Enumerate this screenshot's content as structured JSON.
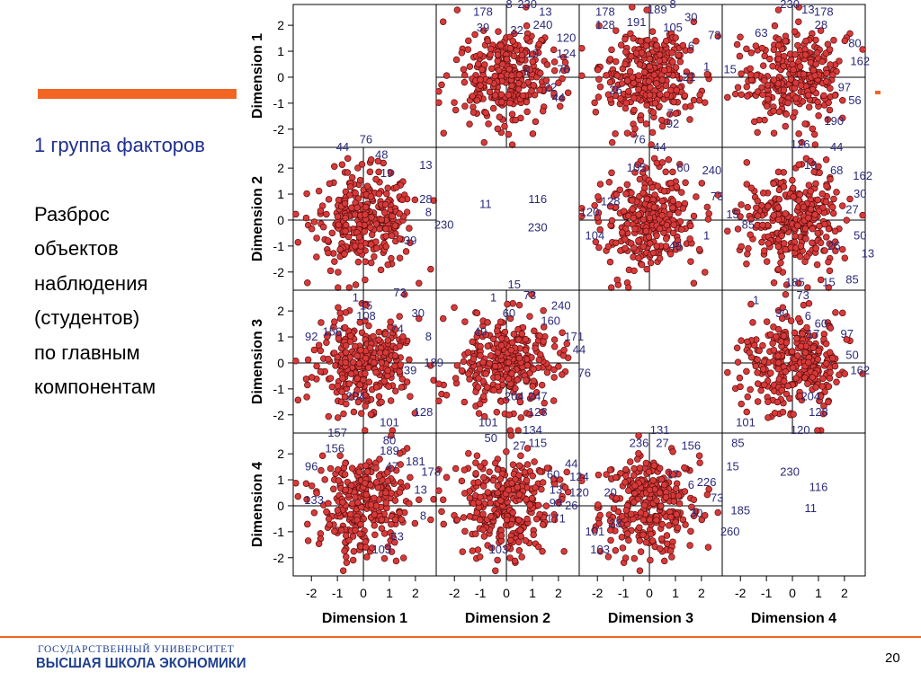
{
  "slide": {
    "group_title": "1 группа факторов",
    "description_lines": [
      "Разброс",
      "объектов",
      "наблюдения",
      "(студентов)",
      "по главным",
      "компонентам"
    ],
    "university_top": "ГОСУДАРСТВЕННЫЙ УНИВЕРСИТЕТ",
    "university_main": "ВЫСШАЯ ШКОЛА ЭКОНОМИКИ",
    "page_number": "20"
  },
  "colors": {
    "accent_orange": "#f26522",
    "brand_blue": "#1f3f8f",
    "point_fill": "#d83a3a",
    "point_stroke": "#5a0e0e",
    "label_color": "#2a2a7a"
  },
  "chart_data": {
    "type": "scatter",
    "subtype": "scatterplot-matrix",
    "variables": [
      "Dimension 1",
      "Dimension 2",
      "Dimension 3",
      "Dimension 4"
    ],
    "axis_range": [
      -2.7,
      2.8
    ],
    "ticks": [
      -2,
      -1,
      0,
      1,
      2
    ],
    "tick_labels": [
      "-2",
      "-1",
      "0",
      "1",
      "2"
    ],
    "grid": true,
    "points_per_panel": 300,
    "outlier_labels": [
      {
        "row": 0,
        "col": 1,
        "labels": [
          {
            "id": "178",
            "x": -0.9,
            "y": 2.5
          },
          {
            "id": "8",
            "x": 0.1,
            "y": 2.8
          },
          {
            "id": "230",
            "x": 0.8,
            "y": 2.8
          },
          {
            "id": "13",
            "x": 1.5,
            "y": 2.5
          },
          {
            "id": "240",
            "x": 1.4,
            "y": 2.0
          },
          {
            "id": "39",
            "x": -0.9,
            "y": 1.9
          },
          {
            "id": "32",
            "x": 0.4,
            "y": 1.8
          },
          {
            "id": "120",
            "x": 2.3,
            "y": 1.5
          },
          {
            "id": "124",
            "x": 2.3,
            "y": 0.9
          },
          {
            "id": "76",
            "x": 2.2,
            "y": 0.3
          },
          {
            "id": "22",
            "x": 1.7,
            "y": -0.4
          },
          {
            "id": "44",
            "x": 2.0,
            "y": -0.8
          },
          {
            "id": "19",
            "x": 1.0,
            "y": 0.9
          },
          {
            "id": "8",
            "x": 0.8,
            "y": 0.2
          }
        ]
      },
      {
        "row": 0,
        "col": 2,
        "labels": [
          {
            "id": "178",
            "x": -1.7,
            "y": 2.5
          },
          {
            "id": "128",
            "x": -1.7,
            "y": 2.0
          },
          {
            "id": "189",
            "x": 0.3,
            "y": 2.6
          },
          {
            "id": "8",
            "x": 0.9,
            "y": 2.8
          },
          {
            "id": "30",
            "x": 1.6,
            "y": 2.3
          },
          {
            "id": "191",
            "x": -0.5,
            "y": 2.1
          },
          {
            "id": "105",
            "x": 0.9,
            "y": 1.9
          },
          {
            "id": "73",
            "x": 2.5,
            "y": 1.6
          },
          {
            "id": "6",
            "x": 1.6,
            "y": 1.2
          },
          {
            "id": "121",
            "x": 1.4,
            "y": 0.0
          },
          {
            "id": "1",
            "x": 2.2,
            "y": 0.4
          },
          {
            "id": "15",
            "x": 3.1,
            "y": 0.3
          },
          {
            "id": "26",
            "x": -1.3,
            "y": -0.5
          },
          {
            "id": "92",
            "x": 0.9,
            "y": -1.8
          },
          {
            "id": "7",
            "x": 0.8,
            "y": -1.4
          }
        ]
      },
      {
        "row": 0,
        "col": 3,
        "labels": [
          {
            "id": "230",
            "x": -0.1,
            "y": 2.8
          },
          {
            "id": "13",
            "x": 0.6,
            "y": 2.6
          },
          {
            "id": "178",
            "x": 1.2,
            "y": 2.5
          },
          {
            "id": "28",
            "x": 1.1,
            "y": 2.0
          },
          {
            "id": "63",
            "x": -1.2,
            "y": 1.7
          },
          {
            "id": "80",
            "x": 2.4,
            "y": 1.3
          },
          {
            "id": "162",
            "x": 2.6,
            "y": 0.6
          },
          {
            "id": "97",
            "x": 2.0,
            "y": -0.4
          },
          {
            "id": "56",
            "x": 2.4,
            "y": -0.9
          },
          {
            "id": "190",
            "x": 1.6,
            "y": -1.7
          }
        ]
      },
      {
        "row": 1,
        "col": 0,
        "labels": [
          {
            "id": "76",
            "x": 0.1,
            "y": 3.1
          },
          {
            "id": "44",
            "x": -0.8,
            "y": 2.8
          },
          {
            "id": "48",
            "x": 0.7,
            "y": 2.5
          },
          {
            "id": "13",
            "x": 2.4,
            "y": 2.1
          },
          {
            "id": "19",
            "x": 0.9,
            "y": 1.8
          },
          {
            "id": "28",
            "x": 2.4,
            "y": 0.8
          },
          {
            "id": "8",
            "x": 2.5,
            "y": 0.3
          },
          {
            "id": "230",
            "x": 3.1,
            "y": -0.2
          },
          {
            "id": "39",
            "x": 1.8,
            "y": -0.8
          }
        ]
      },
      {
        "row": 1,
        "col": 1,
        "labels": [
          {
            "id": "11",
            "x": -0.8,
            "y": 0.6
          },
          {
            "id": "116",
            "x": 1.2,
            "y": 0.8
          },
          {
            "id": "230",
            "x": 1.2,
            "y": -0.3
          }
        ]
      },
      {
        "row": 1,
        "col": 2,
        "labels": [
          {
            "id": "76",
            "x": -0.4,
            "y": 3.1
          },
          {
            "id": "44",
            "x": 0.4,
            "y": 2.8
          },
          {
            "id": "60",
            "x": 1.3,
            "y": 2.0
          },
          {
            "id": "240",
            "x": 2.4,
            "y": 1.9
          },
          {
            "id": "105",
            "x": -0.5,
            "y": 2.0
          },
          {
            "id": "128",
            "x": -1.5,
            "y": 0.7
          },
          {
            "id": "120",
            "x": -2.3,
            "y": 0.3
          },
          {
            "id": "73",
            "x": 2.6,
            "y": 0.9
          },
          {
            "id": "15",
            "x": 3.2,
            "y": 0.2
          },
          {
            "id": "85",
            "x": 3.8,
            "y": -0.2
          },
          {
            "id": "104",
            "x": -2.1,
            "y": -0.6
          },
          {
            "id": "1",
            "x": 2.2,
            "y": -0.6
          },
          {
            "id": "49",
            "x": 1.0,
            "y": -1.0
          }
        ]
      },
      {
        "row": 1,
        "col": 3,
        "labels": [
          {
            "id": "126",
            "x": 0.3,
            "y": 2.9
          },
          {
            "id": "44",
            "x": 1.7,
            "y": 2.8
          },
          {
            "id": "13",
            "x": 0.7,
            "y": 2.1
          },
          {
            "id": "68",
            "x": 1.7,
            "y": 1.9
          },
          {
            "id": "162",
            "x": 2.7,
            "y": 1.7
          },
          {
            "id": "30",
            "x": 2.6,
            "y": 1.0
          },
          {
            "id": "27",
            "x": 2.3,
            "y": 0.4
          },
          {
            "id": "50",
            "x": 2.6,
            "y": -0.6
          },
          {
            "id": "26",
            "x": 1.6,
            "y": -1.0
          },
          {
            "id": "13",
            "x": 2.9,
            "y": -1.3
          }
        ]
      },
      {
        "row": 2,
        "col": 0,
        "labels": [
          {
            "id": "15",
            "x": 0.1,
            "y": 2.2
          },
          {
            "id": "73",
            "x": 1.4,
            "y": 2.7
          },
          {
            "id": "1",
            "x": -0.3,
            "y": 2.5
          },
          {
            "id": "108",
            "x": 0.1,
            "y": 1.8
          },
          {
            "id": "30",
            "x": 2.1,
            "y": 1.9
          },
          {
            "id": "92",
            "x": -2.0,
            "y": 1.0
          },
          {
            "id": "156",
            "x": -1.2,
            "y": 1.2
          },
          {
            "id": "74",
            "x": 1.3,
            "y": 1.3
          },
          {
            "id": "8",
            "x": 2.5,
            "y": 1.0
          },
          {
            "id": "189",
            "x": 2.7,
            "y": 0.0
          },
          {
            "id": "39",
            "x": 1.8,
            "y": -0.3
          },
          {
            "id": "204",
            "x": -0.3,
            "y": -1.3
          },
          {
            "id": "101",
            "x": 1.0,
            "y": -2.3
          },
          {
            "id": "128",
            "x": 2.3,
            "y": -1.9
          }
        ]
      },
      {
        "row": 2,
        "col": 1,
        "labels": [
          {
            "id": "15",
            "x": 0.3,
            "y": 3.0
          },
          {
            "id": "73",
            "x": 0.9,
            "y": 2.6
          },
          {
            "id": "1",
            "x": -0.5,
            "y": 2.5
          },
          {
            "id": "240",
            "x": 2.1,
            "y": 2.2
          },
          {
            "id": "60",
            "x": 0.1,
            "y": 1.9
          },
          {
            "id": "160",
            "x": 1.7,
            "y": 1.6
          },
          {
            "id": "49",
            "x": -1.0,
            "y": 1.2
          },
          {
            "id": "171",
            "x": 2.6,
            "y": 1.0
          },
          {
            "id": "44",
            "x": 2.8,
            "y": 0.5
          },
          {
            "id": "76",
            "x": 3.0,
            "y": -0.4
          },
          {
            "id": "204",
            "x": 0.3,
            "y": -1.3
          },
          {
            "id": "128",
            "x": 1.2,
            "y": -1.9
          },
          {
            "id": "101",
            "x": -0.7,
            "y": -2.3
          },
          {
            "id": "134",
            "x": 1.0,
            "y": -2.6
          },
          {
            "id": "247",
            "x": 1.2,
            "y": -1.3
          }
        ]
      },
      {
        "row": 2,
        "col": 3,
        "labels": [
          {
            "id": "185",
            "x": 0.1,
            "y": 3.1
          },
          {
            "id": "15",
            "x": 1.4,
            "y": 3.1
          },
          {
            "id": "85",
            "x": 2.3,
            "y": 3.2
          },
          {
            "id": "73",
            "x": 0.4,
            "y": 2.6
          },
          {
            "id": "1",
            "x": -1.4,
            "y": 2.4
          },
          {
            "id": "30",
            "x": -0.4,
            "y": 1.9
          },
          {
            "id": "6",
            "x": 0.6,
            "y": 1.8
          },
          {
            "id": "60",
            "x": 1.1,
            "y": 1.5
          },
          {
            "id": "97",
            "x": 2.1,
            "y": 1.1
          },
          {
            "id": "17",
            "x": 0.8,
            "y": 1.1
          },
          {
            "id": "50",
            "x": 2.3,
            "y": 0.3
          },
          {
            "id": "162",
            "x": 2.6,
            "y": -0.3
          },
          {
            "id": "204",
            "x": 0.7,
            "y": -1.3
          },
          {
            "id": "128",
            "x": 1.0,
            "y": -1.9
          },
          {
            "id": "101",
            "x": -1.8,
            "y": -2.3
          },
          {
            "id": "120",
            "x": 0.3,
            "y": -2.6
          }
        ]
      },
      {
        "row": 3,
        "col": 0,
        "labels": [
          {
            "id": "157",
            "x": -1.0,
            "y": 2.8
          },
          {
            "id": "80",
            "x": 1.0,
            "y": 2.5
          },
          {
            "id": "156",
            "x": -1.1,
            "y": 2.2
          },
          {
            "id": "189",
            "x": 1.0,
            "y": 2.1
          },
          {
            "id": "181",
            "x": 2.0,
            "y": 1.7
          },
          {
            "id": "96",
            "x": -2.0,
            "y": 1.5
          },
          {
            "id": "47",
            "x": 1.1,
            "y": 1.5
          },
          {
            "id": "178",
            "x": 2.6,
            "y": 1.3
          },
          {
            "id": "13",
            "x": 2.2,
            "y": 0.6
          },
          {
            "id": "8",
            "x": 2.3,
            "y": -0.4
          },
          {
            "id": "133",
            "x": -1.9,
            "y": 0.2
          },
          {
            "id": "63",
            "x": 1.3,
            "y": -1.2
          },
          {
            "id": "103",
            "x": 0.7,
            "y": -1.7
          }
        ]
      },
      {
        "row": 3,
        "col": 1,
        "labels": [
          {
            "id": "50",
            "x": -0.6,
            "y": 2.6
          },
          {
            "id": "27",
            "x": 0.5,
            "y": 2.3
          },
          {
            "id": "115",
            "x": 1.2,
            "y": 2.4
          },
          {
            "id": "44",
            "x": 2.5,
            "y": 1.6
          },
          {
            "id": "60",
            "x": 1.8,
            "y": 1.2
          },
          {
            "id": "124",
            "x": 2.8,
            "y": 1.1
          },
          {
            "id": "13",
            "x": 1.9,
            "y": 0.6
          },
          {
            "id": "120",
            "x": 2.8,
            "y": 0.5
          },
          {
            "id": "98",
            "x": 1.9,
            "y": 0.1
          },
          {
            "id": "26",
            "x": 2.5,
            "y": 0.0
          },
          {
            "id": "171",
            "x": 1.9,
            "y": -0.5
          },
          {
            "id": "103",
            "x": -0.3,
            "y": -1.7
          }
        ]
      },
      {
        "row": 3,
        "col": 2,
        "labels": [
          {
            "id": "131",
            "x": 0.4,
            "y": 2.9
          },
          {
            "id": "236",
            "x": -0.4,
            "y": 2.4
          },
          {
            "id": "27",
            "x": 0.5,
            "y": 2.4
          },
          {
            "id": "156",
            "x": 1.6,
            "y": 2.3
          },
          {
            "id": "85",
            "x": 3.4,
            "y": 2.4
          },
          {
            "id": "15",
            "x": 3.2,
            "y": 1.5
          },
          {
            "id": "17",
            "x": 0.9,
            "y": 1.2
          },
          {
            "id": "6",
            "x": 1.6,
            "y": 0.8
          },
          {
            "id": "226",
            "x": 2.2,
            "y": 0.9
          },
          {
            "id": "73",
            "x": 2.6,
            "y": 0.3
          },
          {
            "id": "20",
            "x": -1.5,
            "y": 0.5
          },
          {
            "id": "185",
            "x": 3.5,
            "y": -0.2
          },
          {
            "id": "30",
            "x": 1.8,
            "y": -0.3
          },
          {
            "id": "260",
            "x": 3.1,
            "y": -1.0
          },
          {
            "id": "101",
            "x": -2.1,
            "y": -1.0
          },
          {
            "id": "103",
            "x": -1.9,
            "y": -1.7
          },
          {
            "id": "28",
            "x": -1.3,
            "y": -0.7
          }
        ]
      },
      {
        "row": 3,
        "col": 3,
        "labels": [
          {
            "id": "230",
            "x": -0.1,
            "y": 1.3
          },
          {
            "id": "116",
            "x": 1.0,
            "y": 0.7
          },
          {
            "id": "11",
            "x": 0.7,
            "y": -0.1
          }
        ]
      }
    ]
  }
}
